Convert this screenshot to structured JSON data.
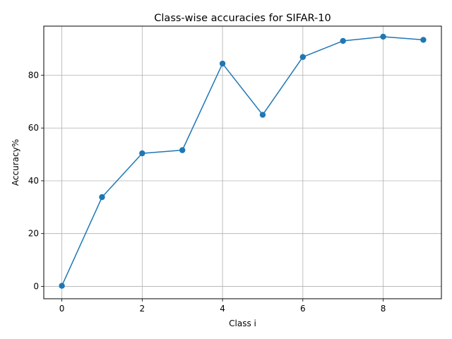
{
  "chart_data": {
    "type": "line",
    "title": "Class-wise accuracies for SIFAR-10",
    "xlabel": "Class i",
    "ylabel": "Accuracy%",
    "x": [
      0,
      1,
      2,
      3,
      4,
      5,
      6,
      7,
      8,
      9
    ],
    "series": [
      {
        "values": [
          0.2,
          33.8,
          50.4,
          51.6,
          84.4,
          65.0,
          86.9,
          93.0,
          94.6,
          93.4
        ]
      }
    ],
    "xlim": [
      -0.45,
      9.45
    ],
    "ylim": [
      -4.7,
      98.6
    ],
    "xticks": [
      0,
      2,
      4,
      6,
      8
    ],
    "xtick_labels": [
      "0",
      "2",
      "4",
      "6",
      "8"
    ],
    "yticks": [
      0,
      20,
      40,
      60,
      80
    ],
    "ytick_labels": [
      "0",
      "20",
      "40",
      "60",
      "80"
    ],
    "grid": true,
    "line_color": "#1f77b4",
    "marker": "circle"
  }
}
